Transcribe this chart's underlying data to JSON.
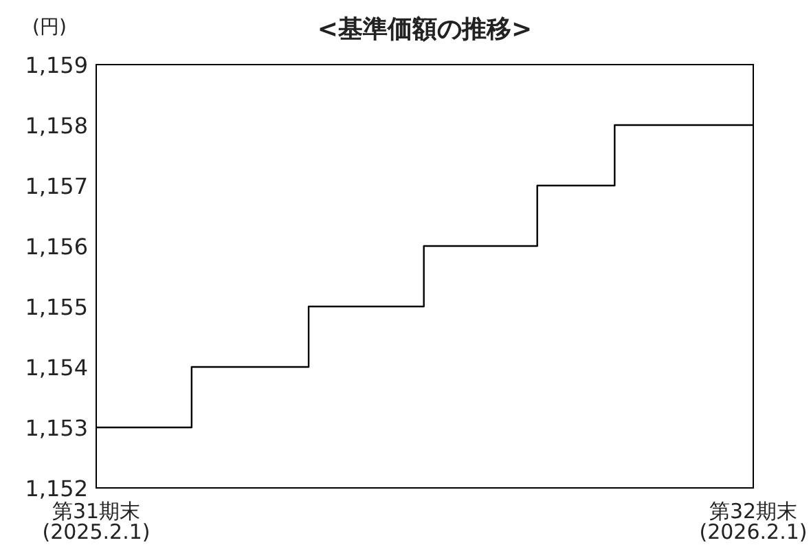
{
  "chart_data": {
    "type": "step",
    "title": "<基準価額の推移>",
    "ylabel": "(円)",
    "x": [
      "2025-02-01",
      "2025-03-26",
      "2025-05-30",
      "2025-08-02",
      "2025-10-04",
      "2025-11-16",
      "2026-02-01"
    ],
    "series": [
      {
        "color": "#000000",
        "values": [
          1153,
          1154,
          1155,
          1156,
          1157,
          1158,
          1158
        ]
      }
    ],
    "xlim": [
      "2025-02-01",
      "2026-02-01"
    ],
    "xticks": [
      {
        "value": "2025-02-01",
        "label": "第31期末\n(2025.2.1)"
      },
      {
        "value": "2026-02-01",
        "label": "第32期末\n(2026.2.1)"
      }
    ],
    "ylim": [
      1152,
      1159
    ],
    "yticks": [
      {
        "value": 1152,
        "label": "1,152"
      },
      {
        "value": 1153,
        "label": "1,153"
      },
      {
        "value": 1154,
        "label": "1,154"
      },
      {
        "value": 1155,
        "label": "1,155"
      },
      {
        "value": 1156,
        "label": "1,156"
      },
      {
        "value": 1157,
        "label": "1,157"
      },
      {
        "value": 1158,
        "label": "1,158"
      },
      {
        "value": 1159,
        "label": "1,159"
      }
    ],
    "line_style": "solid"
  }
}
